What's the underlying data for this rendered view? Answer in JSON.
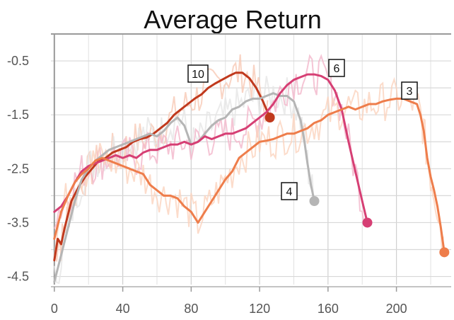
{
  "chart_data": {
    "type": "line",
    "title": "Average Return",
    "xlabel": "",
    "ylabel": "",
    "xlim": [
      -2,
      232
    ],
    "ylim": [
      -4.65,
      0
    ],
    "x_ticks": [
      0,
      40,
      80,
      120,
      160,
      200
    ],
    "x_tick_labels": [
      "0",
      "40",
      "80",
      "120",
      "160",
      "200"
    ],
    "y_ticks": [
      -0.5,
      -1.5,
      -2.5,
      -3.5,
      -4.5
    ],
    "y_tick_labels": [
      "-0.5",
      "-1.5",
      "-2.5",
      "-3.5",
      "-4.5"
    ],
    "grid": true,
    "series": [
      {
        "name": "10",
        "color": "#c0391d",
        "raw_color": "#f7c9b5",
        "end_marker": true,
        "x": [
          0,
          2,
          4,
          6,
          8,
          10,
          14,
          18,
          22,
          26,
          30,
          34,
          38,
          42,
          46,
          50,
          54,
          58,
          62,
          66,
          70,
          74,
          78,
          82,
          86,
          90,
          94,
          98,
          102,
          106,
          110,
          114,
          118,
          122,
          126
        ],
        "y": [
          -4.2,
          -3.8,
          -3.9,
          -3.6,
          -3.35,
          -3.1,
          -2.85,
          -2.65,
          -2.5,
          -2.35,
          -2.3,
          -2.2,
          -2.15,
          -2.1,
          -2.0,
          -1.95,
          -1.92,
          -1.85,
          -1.75,
          -1.65,
          -1.5,
          -1.4,
          -1.3,
          -1.2,
          -1.12,
          -1.0,
          -0.92,
          -0.85,
          -0.78,
          -0.72,
          -0.72,
          -0.82,
          -1.0,
          -1.25,
          -1.55
        ]
      },
      {
        "name": "4",
        "color": "#b5b5b5",
        "raw_color": "#e6e6e6",
        "end_marker": true,
        "x": [
          0,
          4,
          8,
          12,
          16,
          20,
          24,
          28,
          32,
          36,
          40,
          44,
          48,
          52,
          56,
          60,
          64,
          68,
          72,
          76,
          80,
          84,
          88,
          92,
          96,
          100,
          104,
          108,
          112,
          116,
          120,
          124,
          128,
          132,
          136,
          140,
          144,
          146,
          148,
          150,
          152
        ],
        "y": [
          -4.6,
          -4.1,
          -3.6,
          -3.1,
          -2.7,
          -2.5,
          -2.35,
          -2.25,
          -2.15,
          -2.1,
          -2.05,
          -2.0,
          -1.95,
          -1.9,
          -1.85,
          -1.9,
          -1.8,
          -1.65,
          -1.55,
          -1.7,
          -2.05,
          -2.0,
          -1.85,
          -1.7,
          -1.6,
          -1.55,
          -1.4,
          -1.35,
          -1.25,
          -1.2,
          -1.2,
          -1.15,
          -1.1,
          -1.15,
          -1.15,
          -1.25,
          -1.6,
          -1.95,
          -2.4,
          -2.8,
          -3.1
        ]
      },
      {
        "name": "6",
        "color": "#d63f74",
        "raw_color": "#f2b6cb",
        "end_marker": true,
        "x": [
          0,
          4,
          8,
          12,
          16,
          20,
          24,
          28,
          32,
          36,
          40,
          44,
          48,
          52,
          56,
          60,
          64,
          68,
          72,
          76,
          80,
          84,
          88,
          92,
          96,
          100,
          104,
          108,
          112,
          116,
          120,
          124,
          128,
          132,
          136,
          140,
          144,
          148,
          152,
          156,
          160,
          164,
          168,
          172,
          176,
          180,
          183
        ],
        "y": [
          -3.3,
          -3.2,
          -3.0,
          -2.75,
          -2.55,
          -2.45,
          -2.4,
          -2.35,
          -2.3,
          -2.25,
          -2.3,
          -2.25,
          -2.3,
          -2.2,
          -2.15,
          -2.15,
          -2.1,
          -2.05,
          -2.05,
          -2.0,
          -2.05,
          -2.0,
          -1.9,
          -1.95,
          -1.9,
          -1.85,
          -1.85,
          -1.8,
          -1.75,
          -1.65,
          -1.55,
          -1.45,
          -1.3,
          -1.1,
          -0.95,
          -0.85,
          -0.8,
          -0.75,
          -0.75,
          -0.78,
          -0.85,
          -1.05,
          -1.4,
          -2.0,
          -2.55,
          -3.1,
          -3.5
        ]
      },
      {
        "name": "3",
        "color": "#ee7d4b",
        "raw_color": "#fbd3be",
        "end_marker": true,
        "x": [
          0,
          4,
          8,
          12,
          16,
          20,
          24,
          28,
          32,
          36,
          40,
          44,
          48,
          52,
          56,
          60,
          64,
          68,
          72,
          76,
          80,
          84,
          88,
          92,
          96,
          100,
          104,
          108,
          112,
          116,
          120,
          124,
          128,
          132,
          136,
          140,
          144,
          148,
          152,
          156,
          160,
          164,
          168,
          172,
          176,
          180,
          184,
          188,
          192,
          196,
          200,
          204,
          208,
          212,
          214,
          216,
          218,
          220,
          222,
          224,
          226,
          228
        ],
        "y": [
          -3.8,
          -3.3,
          -3.0,
          -2.75,
          -2.6,
          -2.5,
          -2.35,
          -2.3,
          -2.35,
          -2.4,
          -2.45,
          -2.5,
          -2.55,
          -2.6,
          -2.8,
          -2.9,
          -3.0,
          -3.0,
          -3.05,
          -3.2,
          -3.3,
          -3.5,
          -3.3,
          -3.1,
          -2.9,
          -2.7,
          -2.55,
          -2.3,
          -2.2,
          -2.1,
          -2.0,
          -1.98,
          -1.95,
          -1.9,
          -1.85,
          -1.85,
          -1.8,
          -1.75,
          -1.65,
          -1.6,
          -1.5,
          -1.45,
          -1.4,
          -1.35,
          -1.4,
          -1.35,
          -1.3,
          -1.3,
          -1.25,
          -1.22,
          -1.2,
          -1.2,
          -1.25,
          -1.3,
          -1.5,
          -1.8,
          -2.3,
          -2.65,
          -2.9,
          -3.2,
          -3.6,
          -4.05
        ]
      }
    ],
    "annotations": [
      {
        "text": "10",
        "series": "10"
      },
      {
        "text": "4",
        "series": "4"
      },
      {
        "text": "6",
        "series": "6"
      },
      {
        "text": "3",
        "series": "3"
      }
    ]
  }
}
